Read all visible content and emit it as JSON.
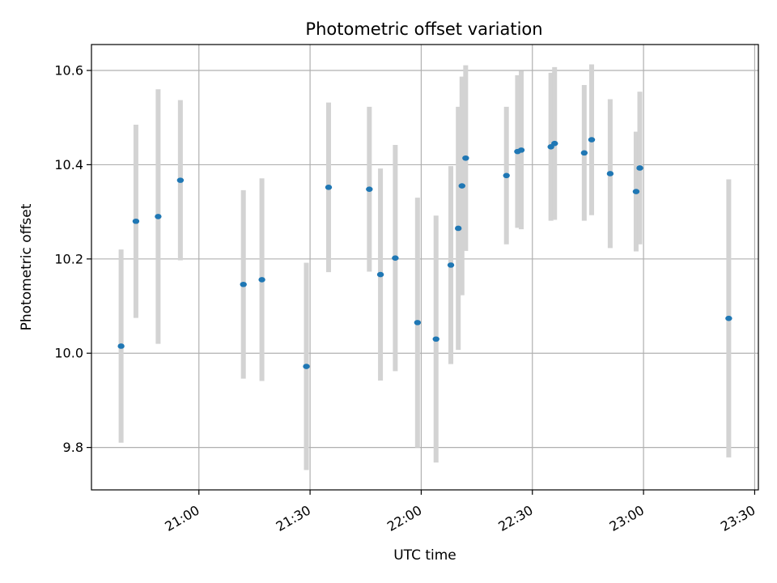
{
  "chart_data": {
    "type": "scatter",
    "title": "Photometric offset variation",
    "xlabel": "UTC time",
    "ylabel": "Photometric offset",
    "x_ticks": [
      "21:00",
      "21:30",
      "22:00",
      "22:30",
      "23:00",
      "23:30"
    ],
    "y_ticks": [
      "9.8",
      "10.0",
      "10.2",
      "10.4",
      "10.6"
    ],
    "xlim": [
      "20:31",
      "23:31"
    ],
    "ylim": [
      9.71,
      10.655
    ],
    "grid": true,
    "colors": {
      "point": "#1f77b4",
      "errorbar": "#d3d3d3",
      "grid": "#b0b0b0"
    },
    "points": [
      {
        "t": "20:39",
        "y": 10.015,
        "err": 0.205
      },
      {
        "t": "20:43",
        "y": 10.28,
        "err": 0.205
      },
      {
        "t": "20:49",
        "y": 10.29,
        "err": 0.27
      },
      {
        "t": "20:55",
        "y": 10.367,
        "err": 0.17
      },
      {
        "t": "21:12",
        "y": 10.146,
        "err": 0.2
      },
      {
        "t": "21:17",
        "y": 10.156,
        "err": 0.215
      },
      {
        "t": "21:29",
        "y": 9.972,
        "err": 0.22
      },
      {
        "t": "21:35",
        "y": 10.352,
        "err": 0.18
      },
      {
        "t": "21:46",
        "y": 10.348,
        "err": 0.175
      },
      {
        "t": "21:49",
        "y": 10.167,
        "err": 0.225
      },
      {
        "t": "21:53",
        "y": 10.202,
        "err": 0.24
      },
      {
        "t": "21:59",
        "y": 10.065,
        "err": 0.265
      },
      {
        "t": "22:04",
        "y": 10.03,
        "err": 0.262
      },
      {
        "t": "22:08",
        "y": 10.187,
        "err": 0.21
      },
      {
        "t": "22:10",
        "y": 10.265,
        "err": 0.258
      },
      {
        "t": "22:11",
        "y": 10.355,
        "err": 0.232
      },
      {
        "t": "22:12",
        "y": 10.414,
        "err": 0.197
      },
      {
        "t": "22:23",
        "y": 10.377,
        "err": 0.146
      },
      {
        "t": "22:26",
        "y": 10.428,
        "err": 0.162
      },
      {
        "t": "22:27",
        "y": 10.431,
        "err": 0.168
      },
      {
        "t": "22:35",
        "y": 10.438,
        "err": 0.157
      },
      {
        "t": "22:36",
        "y": 10.445,
        "err": 0.162
      },
      {
        "t": "22:44",
        "y": 10.425,
        "err": 0.144
      },
      {
        "t": "22:46",
        "y": 10.453,
        "err": 0.16
      },
      {
        "t": "22:51",
        "y": 10.381,
        "err": 0.158
      },
      {
        "t": "22:58",
        "y": 10.343,
        "err": 0.127
      },
      {
        "t": "22:59",
        "y": 10.393,
        "err": 0.162
      },
      {
        "t": "23:23",
        "y": 10.074,
        "err": 0.295
      }
    ]
  }
}
